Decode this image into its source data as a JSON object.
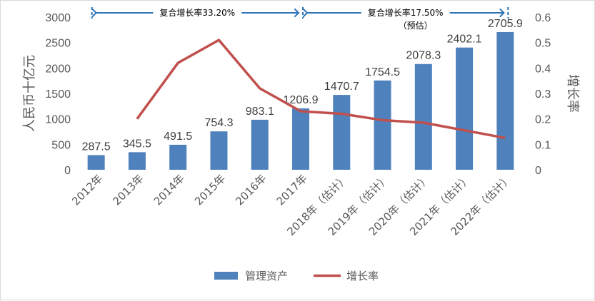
{
  "chart_data": {
    "type": "bar",
    "categories": [
      "2012年",
      "2013年",
      "2014年",
      "2015年",
      "2016年",
      "2017年",
      "2018年（估计）",
      "2019年（估计）",
      "2020年（估计）",
      "2021年（估计）",
      "2022年（估计）"
    ],
    "series": [
      {
        "name": "管理资产",
        "type": "bar",
        "axis": "left",
        "color": "#4f81bd",
        "values": [
          287.5,
          345.5,
          491.5,
          754.3,
          983.1,
          1206.9,
          1470.7,
          1754.5,
          2078.3,
          2402.1,
          2705.9
        ],
        "labels": [
          "287.5",
          "345.5",
          "491.5",
          "754.3",
          "983.1",
          "1206.9",
          "1470.7",
          "1754.5",
          "2078.3",
          "2402.1",
          "2705.9"
        ]
      },
      {
        "name": "增长率",
        "type": "line",
        "axis": "right",
        "color": "#c0504d",
        "values": [
          null,
          0.2,
          0.42,
          0.51,
          0.32,
          0.23,
          0.22,
          0.195,
          0.185,
          0.155,
          0.125
        ]
      }
    ],
    "ylabel": "人民币十亿元",
    "ylim": [
      0,
      3000
    ],
    "yticks": [
      "0",
      "500",
      "1000",
      "1500",
      "2000",
      "2500",
      "3000"
    ],
    "y2label": "增长率",
    "y2lim": [
      0,
      0.6
    ],
    "y2ticks": [
      "0",
      "0.1",
      "0.2",
      "0.3",
      "0.4",
      "0.5",
      "0.6"
    ],
    "annotations": [
      {
        "text": "复合增长率33.20%",
        "from_category": 0,
        "to_category": 5
      },
      {
        "text": "复合增长率17.50%",
        "subtext": "（预估）",
        "from_category": 5,
        "to_category": 10
      }
    ],
    "annotation_color": "#2e75b6",
    "grid": false,
    "legend": "bottom"
  }
}
